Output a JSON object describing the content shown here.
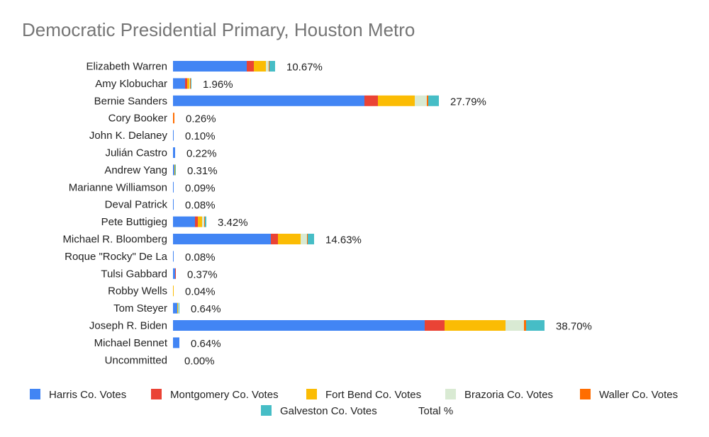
{
  "chart_data": {
    "type": "bar",
    "orientation": "horizontal",
    "stacked": true,
    "title": "Democratic Presidential Primary, Houston Metro",
    "xlabel": "",
    "ylabel": "",
    "grid": false,
    "legend_position": "bottom",
    "categories": [
      "Elizabeth Warren",
      "Amy Klobuchar",
      "Bernie Sanders",
      "Cory Booker",
      "John K. Delaney",
      "Julián Castro",
      "Andrew Yang",
      "Marianne Williamson",
      "Deval Patrick",
      "Pete Buttigieg",
      "Michael R. Bloomberg",
      "Roque \"Rocky\" De La",
      "Tulsi Gabbard",
      "Robby Wells",
      "Tom Steyer",
      "Joseph R. Biden",
      "Michael Bennet",
      "Uncommitted"
    ],
    "series": [
      {
        "name": "Harris Co. Votes",
        "color": "#4285F4",
        "values": [
          104,
          17,
          270,
          0,
          1,
          3,
          2,
          1,
          1,
          31,
          138,
          1,
          3,
          0,
          6,
          355,
          9,
          0
        ]
      },
      {
        "name": "Montgomery Co. Votes",
        "color": "#EA4335",
        "values": [
          10,
          3,
          19,
          0,
          0,
          0,
          0,
          0,
          0,
          4,
          10,
          0,
          1,
          0,
          0,
          28,
          0,
          0
        ]
      },
      {
        "name": "Fort Bend Co. Votes",
        "color": "#FBBC04",
        "values": [
          17,
          3,
          52,
          0,
          0,
          0,
          1,
          0,
          0,
          6,
          32,
          0,
          0,
          1,
          1,
          86,
          0,
          0
        ]
      },
      {
        "name": "Brazoria Co.  Votes",
        "color": "#D9EAD3",
        "values": [
          4,
          1,
          17,
          0,
          0,
          0,
          0,
          0,
          0,
          3,
          9,
          0,
          0,
          0,
          1,
          26,
          0,
          0
        ]
      },
      {
        "name": "Waller Co.  Votes",
        "color": "#FF6D01",
        "values": [
          1,
          1,
          2,
          2,
          0,
          0,
          0,
          0,
          0,
          1,
          1,
          0,
          0,
          0,
          0,
          3,
          0,
          0
        ]
      },
      {
        "name": "Galveston Co. Votes",
        "color": "#46BDC6",
        "values": [
          8,
          1,
          15,
          0,
          0,
          0,
          1,
          0,
          0,
          2,
          9,
          0,
          0,
          0,
          1,
          26,
          0,
          0
        ]
      },
      {
        "name": "Total %",
        "color": "#ffffff",
        "values": [
          10.67,
          1.96,
          27.79,
          0.26,
          0.1,
          0.22,
          0.31,
          0.09,
          0.08,
          3.42,
          14.63,
          0.08,
          0.37,
          0.04,
          0.64,
          38.7,
          0.64,
          0.0
        ],
        "labels": [
          "10.67%",
          "1.96%",
          "27.79%",
          "0.26%",
          "0.10%",
          "0.22%",
          "0.31%",
          "0.09%",
          "0.08%",
          "3.42%",
          "14.63%",
          "0.08%",
          "0.37%",
          "0.04%",
          "0.64%",
          "38.70%",
          "0.64%",
          "0.00%"
        ]
      }
    ]
  }
}
